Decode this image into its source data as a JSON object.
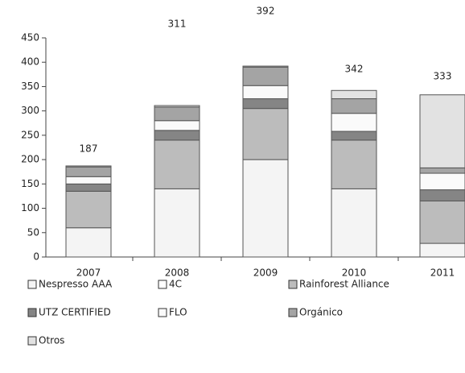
{
  "chart_data": {
    "type": "stacked_bar",
    "categories": [
      "2007",
      "2008",
      "2009",
      "2010",
      "2011"
    ],
    "series": [
      {
        "name": "Nespresso AAA",
        "color": "#f4f4f4",
        "values": [
          60,
          140,
          200,
          140,
          28
        ]
      },
      {
        "name": "4C",
        "color": "#ffffff",
        "values": [
          0,
          0,
          0,
          0,
          0
        ]
      },
      {
        "name": "Rainforest Alliance",
        "color": "#bcbcbc",
        "values": [
          75,
          100,
          105,
          100,
          87
        ]
      },
      {
        "name": "UTZ CERTIFIED",
        "color": "#858585",
        "values": [
          15,
          20,
          20,
          18,
          23
        ]
      },
      {
        "name": "FLO",
        "color": "#fafafa",
        "values": [
          15,
          20,
          27,
          37,
          34
        ]
      },
      {
        "name": "Orgánico",
        "color": "#a4a4a4",
        "values": [
          20,
          28,
          38,
          30,
          11
        ]
      },
      {
        "name": "Otros",
        "color": "#e2e2e2",
        "values": [
          2,
          3,
          2,
          17,
          150
        ]
      }
    ],
    "totals": [
      187,
      311,
      392,
      342,
      333
    ],
    "ylim": [
      0,
      450
    ],
    "yticks": [
      0,
      50,
      100,
      150,
      200,
      250,
      300,
      350,
      400,
      450
    ]
  }
}
